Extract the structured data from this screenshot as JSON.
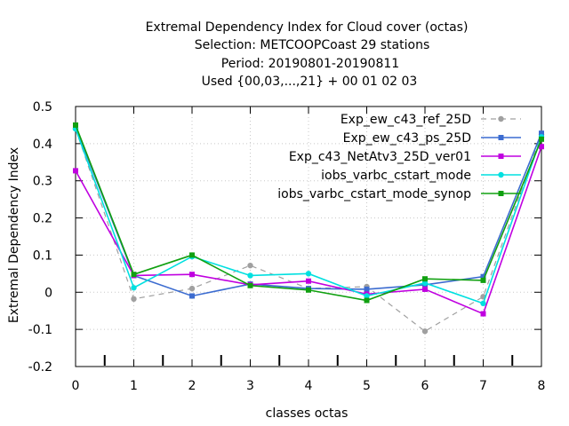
{
  "chart_data": {
    "type": "line",
    "title_lines": [
      "Extremal Dependency Index  for Cloud cover (octas)",
      "Selection: METCOOPCoast     29 stations",
      "Period: 20190801-20190811",
      "Used {00,03,...,21} + 00 01 02 03"
    ],
    "xlabel": "classes octas",
    "ylabel": "Extremal Dependency Index",
    "xlim": [
      0,
      8
    ],
    "ylim": [
      -0.2,
      0.5
    ],
    "xticks": [
      "0",
      "1",
      "2",
      "3",
      "4",
      "5",
      "6",
      "7",
      "8"
    ],
    "yticks": [
      "-0.2",
      "-0.1",
      "0",
      "0.1",
      "0.2",
      "0.3",
      "0.4",
      "0.5"
    ],
    "x": [
      0,
      1,
      2,
      3,
      4,
      5,
      6,
      7,
      8
    ],
    "legend_position": "top-right",
    "series": [
      {
        "name": "Exp_ew_c43_ref_25D",
        "color": "#a0a0a0",
        "dashed": true,
        "marker": "circle",
        "values": [
          0.44,
          -0.018,
          0.01,
          0.072,
          0.01,
          0.015,
          -0.105,
          -0.012,
          0.425
        ]
      },
      {
        "name": "Exp_ew_c43_ps_25D",
        "color": "#3c6cd0",
        "dashed": false,
        "marker": "square",
        "values": [
          0.445,
          0.045,
          -0.01,
          0.022,
          0.01,
          0.008,
          0.02,
          0.042,
          0.428
        ]
      },
      {
        "name": "Exp_c43_NetAtv3_25D_ver01",
        "color": "#c000e0",
        "dashed": false,
        "marker": "square",
        "values": [
          0.327,
          0.045,
          0.048,
          0.02,
          0.03,
          -0.005,
          0.008,
          -0.058,
          0.392
        ]
      },
      {
        "name": "iobs_varbc_cstart_mode",
        "color": "#00e0e0",
        "dashed": false,
        "marker": "circle",
        "values": [
          0.44,
          0.012,
          0.096,
          0.045,
          0.05,
          -0.01,
          0.025,
          -0.03,
          0.418
        ]
      },
      {
        "name": "iobs_varbc_cstart_mode_synop",
        "color": "#10a010",
        "dashed": false,
        "marker": "square",
        "values": [
          0.45,
          0.048,
          0.1,
          0.018,
          0.006,
          -0.022,
          0.036,
          0.032,
          0.412
        ]
      }
    ]
  }
}
